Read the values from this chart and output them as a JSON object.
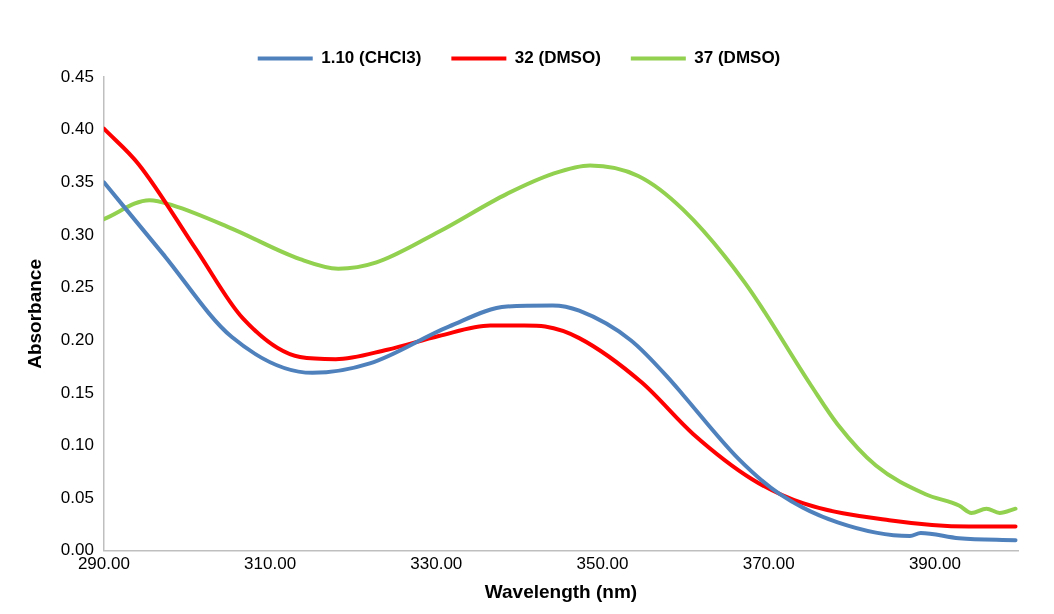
{
  "chart_data": {
    "type": "line",
    "xlabel": "Wavelength (nm)",
    "ylabel": "Absorbance",
    "legend": "top",
    "grid": false,
    "marker": "none",
    "line_style": "solid",
    "xlim": [
      290,
      400
    ],
    "xticks": [
      {
        "value": 290,
        "label": "290.00"
      },
      {
        "value": 310,
        "label": "310.00"
      },
      {
        "value": 330,
        "label": "330.00"
      },
      {
        "value": 350,
        "label": "350.00"
      },
      {
        "value": 370,
        "label": "370.00"
      },
      {
        "value": 390,
        "label": "390.00"
      }
    ],
    "ylim": [
      0,
      0.45
    ],
    "yticks": [
      {
        "value": 0,
        "label": "0.00"
      },
      {
        "value": 0.05,
        "label": "0.05"
      },
      {
        "value": 0.1,
        "label": "0.10"
      },
      {
        "value": 0.15,
        "label": "0.15"
      },
      {
        "value": 0.2,
        "label": "0.20"
      },
      {
        "value": 0.25,
        "label": "0.25"
      },
      {
        "value": 0.3,
        "label": "0.30"
      },
      {
        "value": 0.35,
        "label": "0.35"
      },
      {
        "value": 0.4,
        "label": "0.40"
      },
      {
        "value": 0.45,
        "label": "0.45"
      }
    ],
    "series": [
      {
        "name": "1.10 (CHCl3)",
        "color": "#4f81bd",
        "x": [
          290,
          297.1,
          305.4,
          315.1,
          322,
          331.5,
          338.5,
          344,
          347.2,
          353.4,
          358.4,
          359.7,
          366.4,
          371.3,
          378.3,
          387,
          388.3,
          392.9,
          399.7
        ],
        "values": [
          0.35,
          0.282,
          0.203,
          0.169,
          0.178,
          0.213,
          0.232,
          0.233,
          0.228,
          0.2,
          0.16,
          0.148,
          0.087,
          0.054,
          0.027,
          0.014,
          0.017,
          0.012,
          0.01
        ]
      },
      {
        "name": "32 (DMSO)",
        "color": "#ff0000",
        "x": [
          290,
          294.2,
          301.2,
          306.7,
          313.6,
          317.9,
          324.1,
          330.3,
          336.5,
          340.6,
          343.1,
          347.2,
          354.7,
          360.9,
          368,
          374.2,
          384.5,
          394.1,
          399.7
        ],
        "values": [
          0.401,
          0.367,
          0.285,
          0.221,
          0.184,
          0.182,
          0.191,
          0.204,
          0.214,
          0.214,
          0.213,
          0.202,
          0.16,
          0.111,
          0.068,
          0.045,
          0.029,
          0.023,
          0.023
        ]
      },
      {
        "name": "37 (DMSO)",
        "color": "#92d050",
        "x": [
          290,
          295.5,
          298.3,
          305.4,
          313.6,
          318.2,
          322.8,
          330.3,
          338.5,
          344,
          348.5,
          354.3,
          359.7,
          367.1,
          375.1,
          378.3,
          382.9,
          388.8,
          392.9,
          394.4,
          396.2,
          397.8,
          399.7
        ],
        "values": [
          0.315,
          0.333,
          0.328,
          0.306,
          0.277,
          0.268,
          0.274,
          0.303,
          0.339,
          0.358,
          0.366,
          0.356,
          0.324,
          0.255,
          0.157,
          0.12,
          0.081,
          0.054,
          0.043,
          0.036,
          0.04,
          0.036,
          0.04
        ]
      }
    ]
  }
}
